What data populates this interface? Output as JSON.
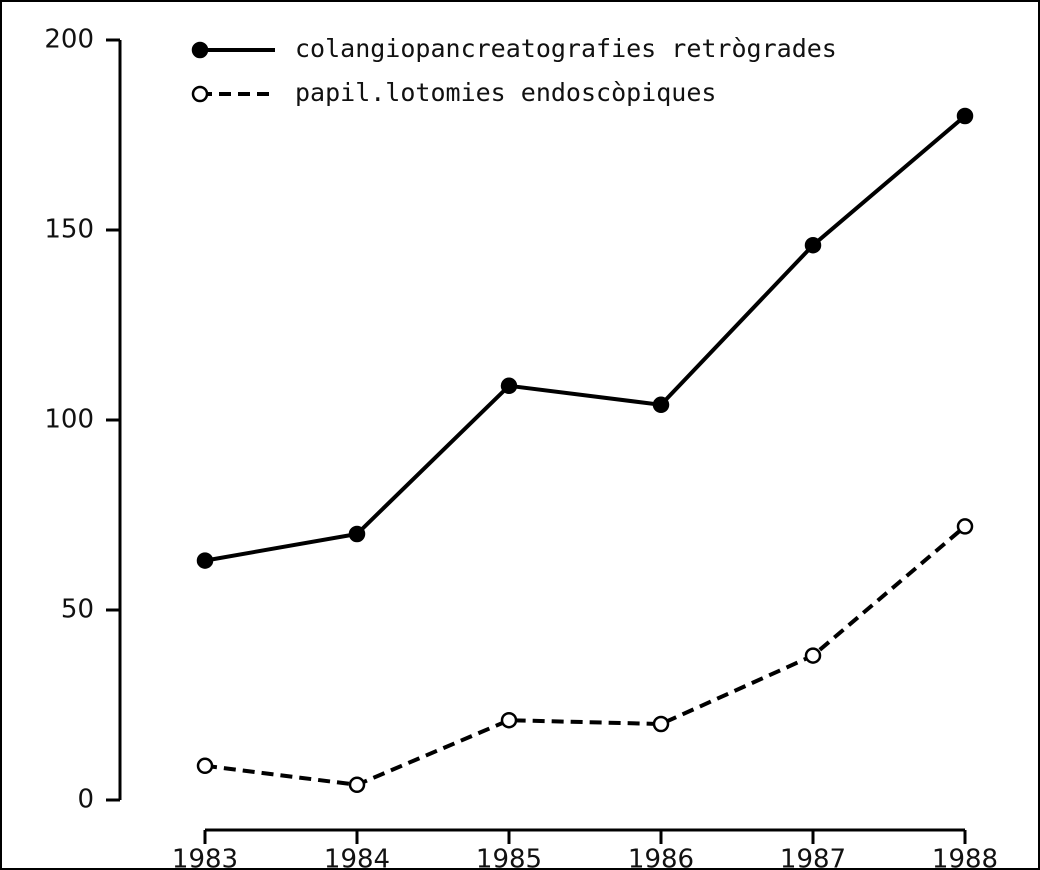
{
  "chart_data": {
    "type": "line",
    "x": [
      1983,
      1984,
      1985,
      1986,
      1987,
      1988
    ],
    "xlim": [
      1983,
      1988
    ],
    "xticks": [
      1983,
      1984,
      1985,
      1986,
      1987,
      1988
    ],
    "ylim": [
      0,
      200
    ],
    "yticks": [
      0,
      50,
      100,
      150,
      200
    ],
    "legend": "top",
    "series": [
      {
        "name": "colangiopancreatografies retrògrades",
        "color": "#000000",
        "line_style": "solid",
        "marker": "filled",
        "values": [
          63,
          70,
          109,
          104,
          146,
          180
        ]
      },
      {
        "name": "papil.lotomies endoscòpiques",
        "color": "#000000",
        "line_style": "dashed",
        "marker": "open",
        "values": [
          9,
          4,
          21,
          20,
          38,
          72
        ]
      }
    ]
  }
}
